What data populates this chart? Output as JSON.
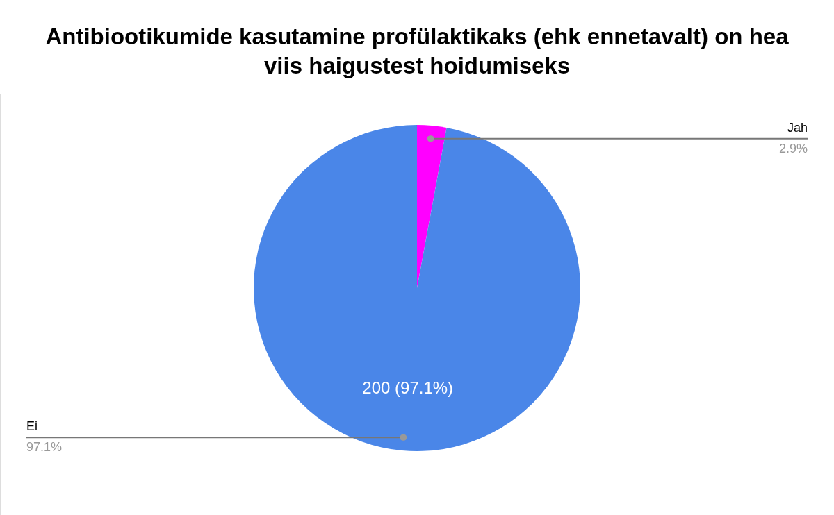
{
  "chart_data": {
    "type": "pie",
    "title": "Antibiootikumide kasutamine profülaktikaks (ehk ennetavalt) on hea viis haigustest hoidumiseks",
    "categories": [
      "Jah",
      "Ei"
    ],
    "values": [
      2.9,
      97.1
    ],
    "colors": [
      "#ff00ff",
      "#4a86e8"
    ],
    "value_labels": [
      "2.9%",
      "97.1%"
    ],
    "annotations": [
      {
        "text": "200 (97.1%)",
        "x": "Ei"
      }
    ]
  }
}
